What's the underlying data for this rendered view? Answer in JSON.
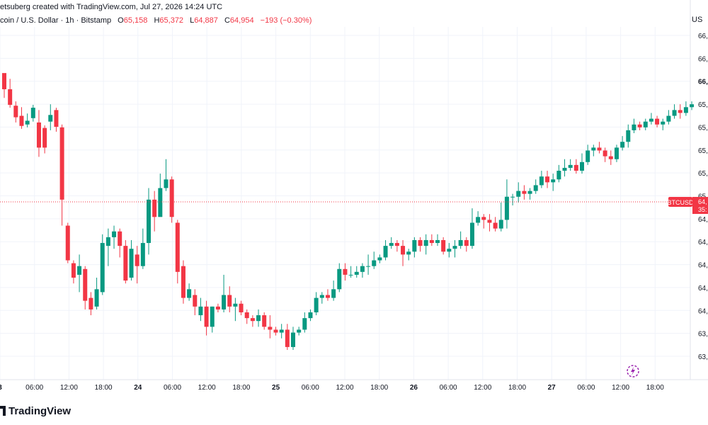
{
  "header": {
    "credit": "etsuberg created with TradingView.com, Jul 27, 2026 14:24 UTC"
  },
  "legend": {
    "symbol": "coin / U.S. Dollar · 1h · Bitstamp",
    "o_label": "O",
    "o_value": "65,158",
    "h_label": "H",
    "h_value": "65,372",
    "l_label": "L",
    "l_value": "64,887",
    "c_label": "C",
    "c_value": "64,954",
    "change": "−193 (−0.30%)"
  },
  "currency": "US",
  "price_tag": {
    "label": "BTCUSD",
    "price": "64,",
    "countdown": "35:"
  },
  "brand": {
    "name": "TradingView"
  },
  "colors": {
    "up": "#089981",
    "down": "#f23645",
    "grid": "#f0f3fa",
    "axis": "#e0e3eb"
  },
  "chart_data": {
    "type": "candlestick",
    "y_axis_labels": [
      "66,",
      "66,",
      "66,",
      "65,",
      "65,",
      "65,",
      "65,",
      "65",
      "64,",
      "64,",
      "64,",
      "64,",
      "64,",
      "63,",
      "63,"
    ],
    "x_axis_labels": [
      "3",
      "06:00",
      "12:00",
      "18:00",
      "24",
      "06:00",
      "12:00",
      "18:00",
      "25",
      "06:00",
      "12:00",
      "18:00",
      "26",
      "06:00",
      "12:00",
      "18:00",
      "27",
      "06:00",
      "12:00",
      "18:00"
    ],
    "candles": [
      [
        0.958,
        0.902,
        0.94,
        0.872
      ],
      [
        0.902,
        0.848,
        0.938,
        0.838
      ],
      [
        0.845,
        0.805,
        0.86,
        0.787
      ],
      [
        0.81,
        0.775,
        0.84,
        0.765
      ],
      [
        0.78,
        0.793,
        0.818,
        0.77
      ],
      [
        0.802,
        0.838,
        0.848,
        0.79
      ],
      [
        0.787,
        0.7,
        0.83,
        0.668
      ],
      [
        0.768,
        0.7,
        0.777,
        0.68
      ],
      [
        0.79,
        0.813,
        0.85,
        0.76
      ],
      [
        0.83,
        0.772,
        0.838,
        0.755
      ],
      [
        0.77,
        0.52,
        0.78,
        0.43
      ],
      [
        0.43,
        0.31,
        0.44,
        0.3
      ],
      [
        0.3,
        0.25,
        0.31,
        0.23
      ],
      [
        0.26,
        0.29,
        0.33,
        0.2
      ],
      [
        0.28,
        0.17,
        0.29,
        0.14
      ],
      [
        0.18,
        0.14,
        0.2,
        0.12
      ],
      [
        0.15,
        0.21,
        0.25,
        0.14
      ],
      [
        0.2,
        0.37,
        0.4,
        0.19
      ],
      [
        0.36,
        0.39,
        0.42,
        0.29
      ],
      [
        0.39,
        0.41,
        0.43,
        0.35
      ],
      [
        0.41,
        0.36,
        0.42,
        0.32
      ],
      [
        0.36,
        0.24,
        0.38,
        0.23
      ],
      [
        0.25,
        0.35,
        0.38,
        0.24
      ],
      [
        0.33,
        0.29,
        0.36,
        0.23
      ],
      [
        0.29,
        0.37,
        0.42,
        0.28
      ],
      [
        0.37,
        0.52,
        0.56,
        0.33
      ],
      [
        0.52,
        0.46,
        0.55,
        0.41
      ],
      [
        0.46,
        0.56,
        0.61,
        0.47
      ],
      [
        0.56,
        0.59,
        0.66,
        0.55
      ],
      [
        0.59,
        0.46,
        0.6,
        0.44
      ],
      [
        0.44,
        0.27,
        0.45,
        0.23
      ],
      [
        0.29,
        0.18,
        0.31,
        0.16
      ],
      [
        0.18,
        0.21,
        0.23,
        0.17
      ],
      [
        0.19,
        0.15,
        0.21,
        0.12
      ],
      [
        0.12,
        0.15,
        0.18,
        0.1
      ],
      [
        0.15,
        0.08,
        0.17,
        0.05
      ],
      [
        0.08,
        0.15,
        0.15,
        0.06
      ],
      [
        0.15,
        0.14,
        0.16,
        0.13
      ],
      [
        0.14,
        0.19,
        0.26,
        0.13
      ],
      [
        0.19,
        0.15,
        0.22,
        0.13
      ],
      [
        0.15,
        0.16,
        0.18,
        0.1
      ],
      [
        0.16,
        0.13,
        0.17,
        0.12
      ],
      [
        0.13,
        0.11,
        0.14,
        0.09
      ],
      [
        0.11,
        0.1,
        0.12,
        0.08
      ],
      [
        0.1,
        0.12,
        0.14,
        0.08
      ],
      [
        0.12,
        0.08,
        0.13,
        0.07
      ],
      [
        0.08,
        0.07,
        0.12,
        0.04
      ],
      [
        0.07,
        0.06,
        0.08,
        0.05
      ],
      [
        0.06,
        0.07,
        0.09,
        0.04
      ],
      [
        0.07,
        0.01,
        0.09,
        0.0
      ],
      [
        0.01,
        0.06,
        0.08,
        0.0
      ],
      [
        0.06,
        0.07,
        0.08,
        0.05
      ],
      [
        0.07,
        0.11,
        0.13,
        0.06
      ],
      [
        0.11,
        0.13,
        0.14,
        0.1
      ],
      [
        0.13,
        0.18,
        0.2,
        0.12
      ],
      [
        0.18,
        0.19,
        0.2,
        0.16
      ],
      [
        0.19,
        0.18,
        0.21,
        0.17
      ],
      [
        0.18,
        0.21,
        0.24,
        0.17
      ],
      [
        0.21,
        0.28,
        0.3,
        0.2
      ],
      [
        0.28,
        0.26,
        0.3,
        0.24
      ],
      [
        0.26,
        0.26,
        0.29,
        0.25
      ],
      [
        0.26,
        0.27,
        0.29,
        0.25
      ],
      [
        0.27,
        0.29,
        0.3,
        0.25
      ],
      [
        0.29,
        0.29,
        0.33,
        0.26
      ],
      [
        0.29,
        0.31,
        0.34,
        0.28
      ],
      [
        0.31,
        0.32,
        0.33,
        0.3
      ],
      [
        0.32,
        0.36,
        0.38,
        0.31
      ],
      [
        0.36,
        0.37,
        0.39,
        0.35
      ],
      [
        0.37,
        0.36,
        0.38,
        0.34
      ],
      [
        0.36,
        0.33,
        0.38,
        0.29
      ],
      [
        0.33,
        0.34,
        0.35,
        0.31
      ],
      [
        0.34,
        0.38,
        0.39,
        0.32
      ],
      [
        0.38,
        0.36,
        0.39,
        0.34
      ],
      [
        0.36,
        0.38,
        0.4,
        0.33
      ],
      [
        0.38,
        0.37,
        0.4,
        0.36
      ],
      [
        0.37,
        0.38,
        0.4,
        0.36
      ],
      [
        0.38,
        0.34,
        0.39,
        0.33
      ],
      [
        0.34,
        0.35,
        0.37,
        0.32
      ],
      [
        0.35,
        0.36,
        0.38,
        0.32
      ],
      [
        0.36,
        0.38,
        0.41,
        0.35
      ],
      [
        0.38,
        0.36,
        0.39,
        0.34
      ],
      [
        0.36,
        0.44,
        0.49,
        0.35
      ],
      [
        0.44,
        0.46,
        0.48,
        0.43
      ],
      [
        0.46,
        0.45,
        0.47,
        0.42
      ],
      [
        0.45,
        0.44,
        0.47,
        0.41
      ],
      [
        0.44,
        0.42,
        0.46,
        0.41
      ],
      [
        0.42,
        0.45,
        0.51,
        0.41
      ],
      [
        0.45,
        0.53,
        0.59,
        0.42
      ],
      [
        0.53,
        0.53,
        0.54,
        0.5
      ],
      [
        0.53,
        0.55,
        0.58,
        0.51
      ],
      [
        0.55,
        0.54,
        0.57,
        0.52
      ],
      [
        0.54,
        0.55,
        0.56,
        0.52
      ],
      [
        0.55,
        0.57,
        0.59,
        0.54
      ],
      [
        0.57,
        0.6,
        0.62,
        0.56
      ],
      [
        0.6,
        0.58,
        0.62,
        0.56
      ],
      [
        0.58,
        0.59,
        0.61,
        0.55
      ],
      [
        0.59,
        0.62,
        0.64,
        0.58
      ],
      [
        0.62,
        0.63,
        0.66,
        0.6
      ],
      [
        0.63,
        0.64,
        0.66,
        0.62
      ],
      [
        0.64,
        0.62,
        0.66,
        0.61
      ],
      [
        0.62,
        0.65,
        0.68,
        0.61
      ],
      [
        0.65,
        0.69,
        0.71,
        0.64
      ],
      [
        0.69,
        0.7,
        0.71,
        0.67
      ],
      [
        0.7,
        0.69,
        0.72,
        0.68
      ],
      [
        0.69,
        0.67,
        0.7,
        0.65
      ],
      [
        0.67,
        0.66,
        0.69,
        0.64
      ],
      [
        0.66,
        0.7,
        0.71,
        0.65
      ],
      [
        0.7,
        0.72,
        0.74,
        0.69
      ],
      [
        0.72,
        0.76,
        0.78,
        0.7
      ],
      [
        0.76,
        0.78,
        0.8,
        0.75
      ],
      [
        0.78,
        0.77,
        0.79,
        0.76
      ],
      [
        0.77,
        0.79,
        0.8,
        0.76
      ],
      [
        0.79,
        0.8,
        0.82,
        0.78
      ],
      [
        0.8,
        0.78,
        0.81,
        0.77
      ],
      [
        0.78,
        0.79,
        0.8,
        0.76
      ],
      [
        0.79,
        0.81,
        0.83,
        0.78
      ],
      [
        0.81,
        0.83,
        0.85,
        0.8
      ],
      [
        0.83,
        0.82,
        0.85,
        0.8
      ],
      [
        0.82,
        0.84,
        0.86,
        0.81
      ],
      [
        0.84,
        0.85,
        0.86,
        0.83
      ]
    ]
  }
}
